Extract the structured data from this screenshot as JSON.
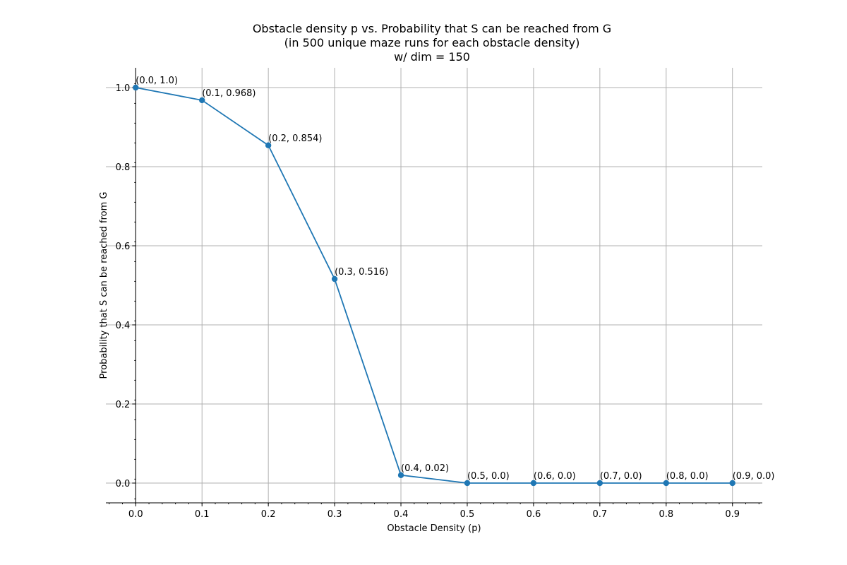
{
  "chart_data": {
    "type": "line",
    "title": [
      "Obstacle density p vs. Probability that S can be reached from G",
      "(in 500 unique maze runs for each obstacle density)",
      "w/ dim = 150"
    ],
    "xlabel": "Obstacle Density (p)",
    "ylabel": "Probability that S can be reached from G",
    "x": [
      0.0,
      0.1,
      0.2,
      0.3,
      0.4,
      0.5,
      0.6,
      0.7,
      0.8,
      0.9
    ],
    "y": [
      1.0,
      0.968,
      0.854,
      0.516,
      0.02,
      0.0,
      0.0,
      0.0,
      0.0,
      0.0
    ],
    "point_labels": [
      "(0.0, 1.0)",
      "(0.1, 0.968)",
      "(0.2, 0.854)",
      "(0.3, 0.516)",
      "(0.4, 0.02)",
      "(0.5, 0.0)",
      "(0.6, 0.0)",
      "(0.7, 0.0)",
      "(0.8, 0.0)",
      "(0.9, 0.0)"
    ],
    "xticks": [
      0.0,
      0.1,
      0.2,
      0.3,
      0.4,
      0.5,
      0.6,
      0.7,
      0.8,
      0.9
    ],
    "xtick_labels": [
      "0.0",
      "0.1",
      "0.2",
      "0.3",
      "0.4",
      "0.5",
      "0.6",
      "0.7",
      "0.8",
      "0.9"
    ],
    "yticks": [
      0.0,
      0.2,
      0.4,
      0.6,
      0.8,
      1.0
    ],
    "ytick_labels": [
      "0.0",
      "0.2",
      "0.4",
      "0.6",
      "0.8",
      "1.0"
    ],
    "xlim": [
      -0.045,
      0.945
    ],
    "ylim": [
      -0.05,
      1.05
    ],
    "grid": true,
    "legend": "none",
    "colors": {
      "series": "#1f77b4",
      "grid": "#b0b0b0",
      "axis": "#000000"
    }
  }
}
